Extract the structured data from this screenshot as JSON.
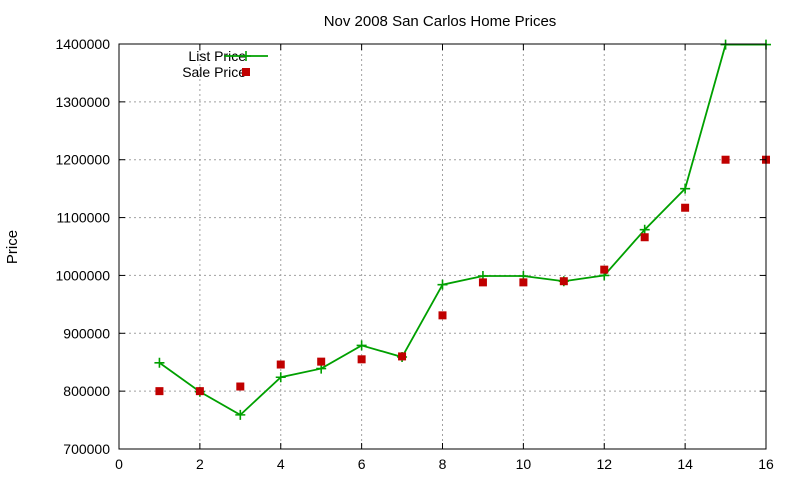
{
  "chart_data": {
    "type": "line",
    "title": "Nov 2008 San Carlos Home Prices",
    "xlabel": "",
    "ylabel": "Price",
    "xlim": [
      0,
      16
    ],
    "ylim": [
      700000,
      1400000
    ],
    "xticks": [
      0,
      2,
      4,
      6,
      8,
      10,
      12,
      14,
      16
    ],
    "yticks": [
      700000,
      800000,
      900000,
      1000000,
      1100000,
      1200000,
      1300000,
      1400000
    ],
    "grid": true,
    "legend_position": "top-left",
    "series": [
      {
        "name": "List Price",
        "style": "linespoints",
        "marker": "plus",
        "color": "#00a000",
        "x": [
          1,
          2,
          3,
          4,
          5,
          6,
          7,
          8,
          9,
          10,
          11,
          12,
          13,
          14,
          15,
          16
        ],
        "y": [
          849000,
          799000,
          759000,
          824000,
          839000,
          879000,
          859000,
          984000,
          999000,
          999000,
          990000,
          1000000,
          1079000,
          1150000,
          1399000,
          1399000
        ]
      },
      {
        "name": "Sale Price",
        "style": "points",
        "marker": "square",
        "color": "#c00000",
        "x": [
          1,
          2,
          3,
          4,
          5,
          6,
          7,
          8,
          9,
          10,
          11,
          12,
          13,
          14,
          15,
          16
        ],
        "y": [
          800000,
          800000,
          808000,
          846000,
          851000,
          855000,
          860000,
          931000,
          988000,
          988000,
          990000,
          1010000,
          1066000,
          1117000,
          1200000,
          1200000
        ]
      }
    ]
  }
}
